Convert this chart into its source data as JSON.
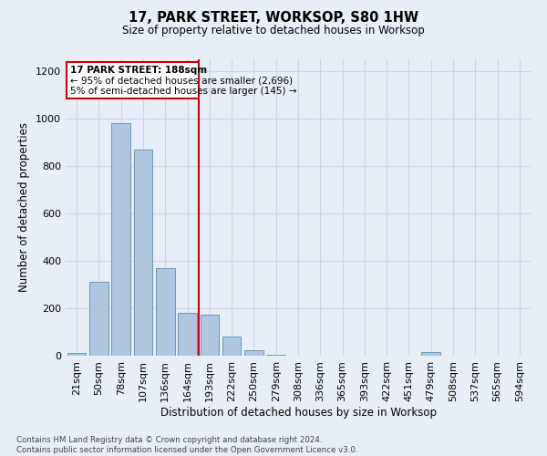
{
  "title": "17, PARK STREET, WORKSOP, S80 1HW",
  "subtitle": "Size of property relative to detached houses in Worksop",
  "xlabel": "Distribution of detached houses by size in Worksop",
  "ylabel": "Number of detached properties",
  "footnote1": "Contains HM Land Registry data © Crown copyright and database right 2024.",
  "footnote2": "Contains public sector information licensed under the Open Government Licence v3.0.",
  "bar_labels": [
    "21sqm",
    "50sqm",
    "78sqm",
    "107sqm",
    "136sqm",
    "164sqm",
    "193sqm",
    "222sqm",
    "250sqm",
    "279sqm",
    "308sqm",
    "336sqm",
    "365sqm",
    "393sqm",
    "422sqm",
    "451sqm",
    "479sqm",
    "508sqm",
    "537sqm",
    "565sqm",
    "594sqm"
  ],
  "bar_values": [
    10,
    310,
    980,
    870,
    370,
    180,
    175,
    80,
    25,
    5,
    0,
    0,
    0,
    0,
    0,
    0,
    15,
    0,
    0,
    0,
    0
  ],
  "bar_color": "#aec6de",
  "bar_edge_color": "#6699bb",
  "vline_index": 6,
  "vline_color": "#cc0000",
  "annotation_title": "17 PARK STREET: 188sqm",
  "annotation_line1": "← 95% of detached houses are smaller (2,696)",
  "annotation_line2": "5% of semi-detached houses are larger (145) →",
  "annotation_box_color": "#cc0000",
  "ylim": [
    0,
    1250
  ],
  "yticks": [
    0,
    200,
    400,
    600,
    800,
    1000,
    1200
  ],
  "grid_color": "#ccd5e8",
  "bg_color": "#e8eef5"
}
